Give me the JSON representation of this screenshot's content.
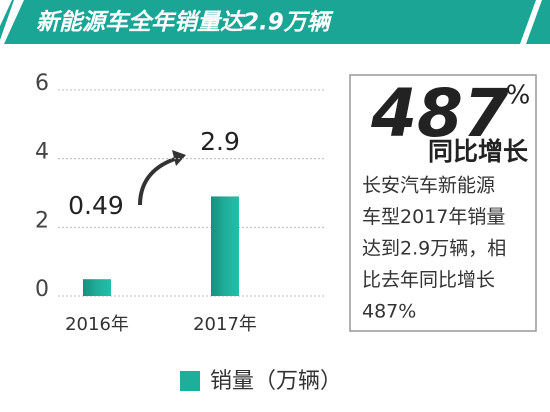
{
  "chart_data": {
    "type": "bar",
    "title": "新能源车全年销量达2.9万辆",
    "categories": [
      "2016年",
      "2017年"
    ],
    "series": [
      {
        "name": "销量（万辆）",
        "color": "#1fae9a",
        "values": [
          0.49,
          2.9
        ]
      }
    ],
    "ylim": [
      0,
      6
    ],
    "yticks": [
      0,
      2,
      4,
      6
    ],
    "grid": true,
    "callout": {
      "value": "487",
      "unit": "%",
      "label": "同比增长",
      "text": [
        "长安汽车新能源",
        "车型2017年销量",
        "达到2.9万辆，相",
        "比去年同比增长",
        "487%"
      ]
    }
  }
}
